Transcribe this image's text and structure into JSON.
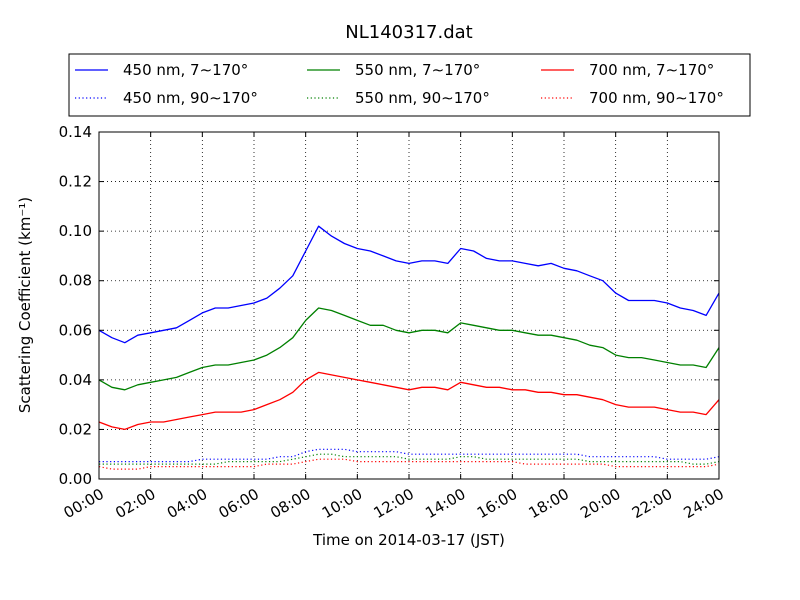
{
  "chart_data": {
    "type": "line",
    "title": "NL140317.dat",
    "xlabel": "Time on 2014-03-17 (JST)",
    "ylabel": "Scattering Coefficient (km⁻¹)",
    "x_ticks": [
      "00:00",
      "02:00",
      "04:00",
      "06:00",
      "08:00",
      "10:00",
      "12:00",
      "14:00",
      "16:00",
      "18:00",
      "20:00",
      "22:00",
      "24:00"
    ],
    "y_ticks": [
      "0.00",
      "0.02",
      "0.04",
      "0.06",
      "0.08",
      "0.10",
      "0.12",
      "0.14"
    ],
    "xlim": [
      "00:00",
      "24:00"
    ],
    "ylim": [
      0,
      0.14
    ],
    "grid": true,
    "legend_placement": "top",
    "x": [
      "00:00",
      "00:30",
      "01:00",
      "01:30",
      "02:00",
      "02:30",
      "03:00",
      "03:30",
      "04:00",
      "04:30",
      "05:00",
      "05:30",
      "06:00",
      "06:30",
      "07:00",
      "07:30",
      "08:00",
      "08:30",
      "09:00",
      "09:30",
      "10:00",
      "10:30",
      "11:00",
      "11:30",
      "12:00",
      "12:30",
      "13:00",
      "13:30",
      "14:00",
      "14:30",
      "15:00",
      "15:30",
      "16:00",
      "16:30",
      "17:00",
      "17:30",
      "18:00",
      "18:30",
      "19:00",
      "19:30",
      "20:00",
      "20:30",
      "21:00",
      "21:30",
      "22:00",
      "22:30",
      "23:00",
      "23:30",
      "24:00"
    ],
    "series": [
      {
        "name": "450 nm, 7∼170°",
        "color": "#0000ff",
        "style": "solid",
        "values": [
          0.06,
          0.057,
          0.055,
          0.058,
          0.059,
          0.06,
          0.061,
          0.064,
          0.067,
          0.069,
          0.069,
          0.07,
          0.071,
          0.073,
          0.077,
          0.082,
          0.092,
          0.102,
          0.098,
          0.095,
          0.093,
          0.092,
          0.09,
          0.088,
          0.087,
          0.088,
          0.088,
          0.087,
          0.093,
          0.092,
          0.089,
          0.088,
          0.088,
          0.087,
          0.086,
          0.087,
          0.085,
          0.084,
          0.082,
          0.08,
          0.075,
          0.072,
          0.072,
          0.072,
          0.071,
          0.069,
          0.068,
          0.066,
          0.075
        ]
      },
      {
        "name": "550 nm, 7∼170°",
        "color": "#008000",
        "style": "solid",
        "values": [
          0.04,
          0.037,
          0.036,
          0.038,
          0.039,
          0.04,
          0.041,
          0.043,
          0.045,
          0.046,
          0.046,
          0.047,
          0.048,
          0.05,
          0.053,
          0.057,
          0.064,
          0.069,
          0.068,
          0.066,
          0.064,
          0.062,
          0.062,
          0.06,
          0.059,
          0.06,
          0.06,
          0.059,
          0.063,
          0.062,
          0.061,
          0.06,
          0.06,
          0.059,
          0.058,
          0.058,
          0.057,
          0.056,
          0.054,
          0.053,
          0.05,
          0.049,
          0.049,
          0.048,
          0.047,
          0.046,
          0.046,
          0.045,
          0.053
        ]
      },
      {
        "name": "700 nm, 7∼170°",
        "color": "#ff0000",
        "style": "solid",
        "values": [
          0.023,
          0.021,
          0.02,
          0.022,
          0.023,
          0.023,
          0.024,
          0.025,
          0.026,
          0.027,
          0.027,
          0.027,
          0.028,
          0.03,
          0.032,
          0.035,
          0.04,
          0.043,
          0.042,
          0.041,
          0.04,
          0.039,
          0.038,
          0.037,
          0.036,
          0.037,
          0.037,
          0.036,
          0.039,
          0.038,
          0.037,
          0.037,
          0.036,
          0.036,
          0.035,
          0.035,
          0.034,
          0.034,
          0.033,
          0.032,
          0.03,
          0.029,
          0.029,
          0.029,
          0.028,
          0.027,
          0.027,
          0.026,
          0.032
        ]
      },
      {
        "name": "450 nm, 90∼170°",
        "color": "#0000ff",
        "style": "dotted",
        "values": [
          0.007,
          0.007,
          0.007,
          0.007,
          0.007,
          0.007,
          0.007,
          0.007,
          0.008,
          0.008,
          0.008,
          0.008,
          0.008,
          0.008,
          0.009,
          0.009,
          0.011,
          0.012,
          0.012,
          0.012,
          0.011,
          0.011,
          0.011,
          0.011,
          0.01,
          0.01,
          0.01,
          0.01,
          0.01,
          0.01,
          0.01,
          0.01,
          0.01,
          0.01,
          0.01,
          0.01,
          0.01,
          0.01,
          0.009,
          0.009,
          0.009,
          0.009,
          0.009,
          0.009,
          0.008,
          0.008,
          0.008,
          0.008,
          0.009
        ]
      },
      {
        "name": "550 nm, 90∼170°",
        "color": "#008000",
        "style": "dotted",
        "values": [
          0.006,
          0.006,
          0.006,
          0.006,
          0.006,
          0.006,
          0.006,
          0.006,
          0.006,
          0.006,
          0.007,
          0.007,
          0.007,
          0.007,
          0.007,
          0.008,
          0.009,
          0.01,
          0.01,
          0.009,
          0.009,
          0.009,
          0.009,
          0.009,
          0.008,
          0.008,
          0.008,
          0.008,
          0.009,
          0.009,
          0.008,
          0.008,
          0.008,
          0.008,
          0.008,
          0.008,
          0.008,
          0.008,
          0.007,
          0.007,
          0.007,
          0.007,
          0.007,
          0.007,
          0.007,
          0.007,
          0.006,
          0.006,
          0.007
        ]
      },
      {
        "name": "700 nm, 90∼170°",
        "color": "#ff0000",
        "style": "dotted",
        "values": [
          0.005,
          0.004,
          0.004,
          0.004,
          0.005,
          0.005,
          0.005,
          0.005,
          0.005,
          0.005,
          0.005,
          0.005,
          0.005,
          0.006,
          0.006,
          0.006,
          0.007,
          0.008,
          0.008,
          0.008,
          0.007,
          0.007,
          0.007,
          0.007,
          0.007,
          0.007,
          0.007,
          0.007,
          0.007,
          0.007,
          0.007,
          0.007,
          0.007,
          0.006,
          0.006,
          0.006,
          0.006,
          0.006,
          0.006,
          0.006,
          0.005,
          0.005,
          0.005,
          0.005,
          0.005,
          0.005,
          0.005,
          0.005,
          0.006
        ]
      }
    ]
  }
}
